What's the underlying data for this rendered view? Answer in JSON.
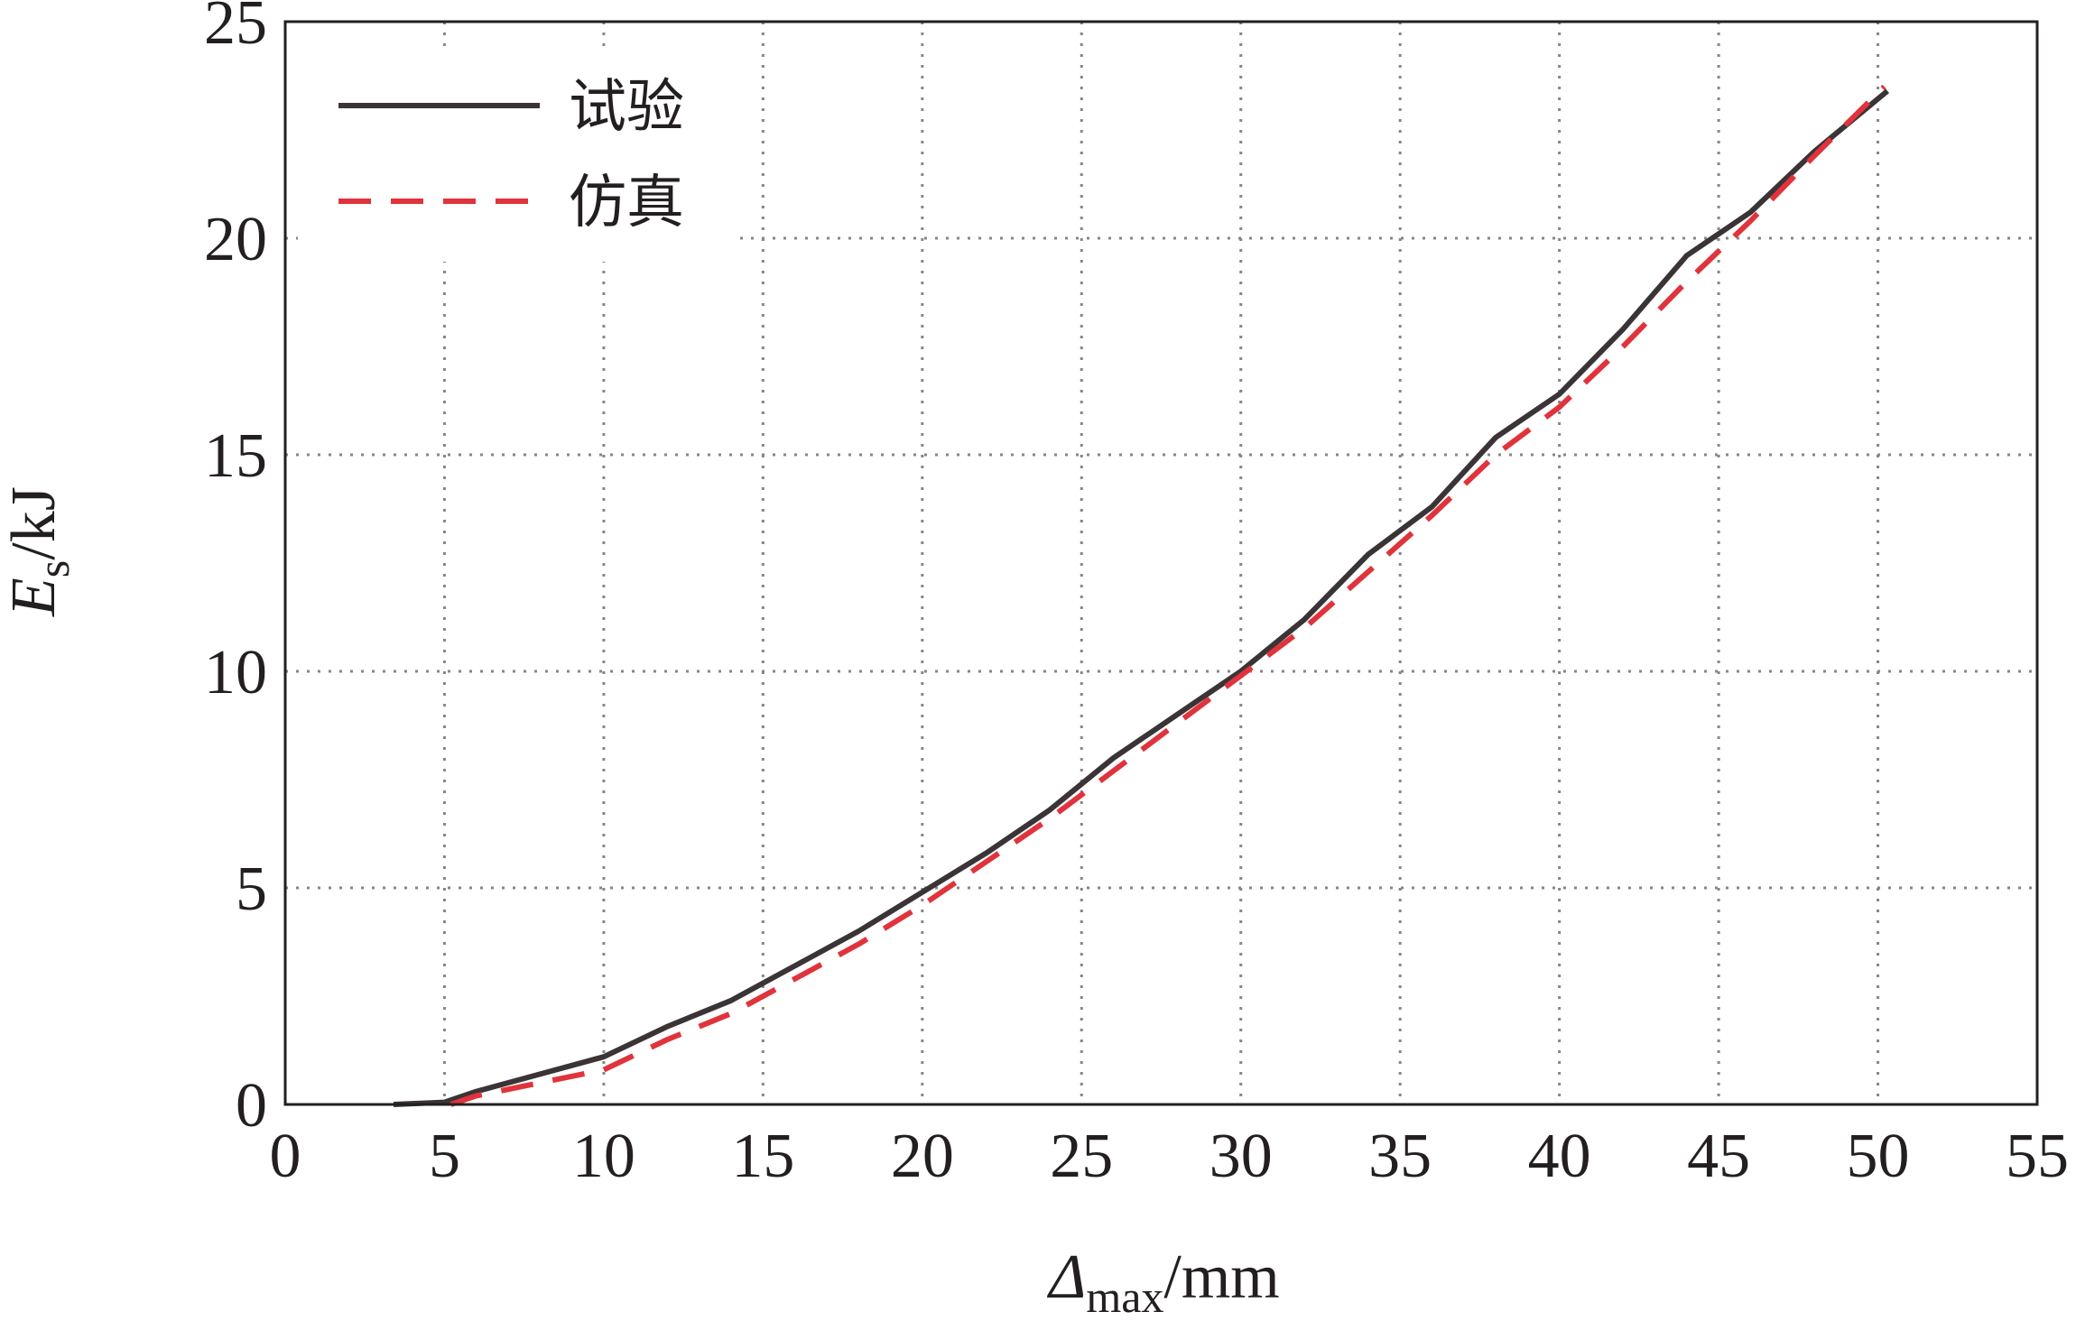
{
  "chart_data": {
    "type": "line",
    "xlabel": {
      "symbol": "Δ",
      "subscript": "max",
      "unit": "/mm"
    },
    "ylabel": {
      "symbol": "E",
      "subscript": "s",
      "unit": "/kJ"
    },
    "xlim": [
      0,
      55
    ],
    "ylim": [
      0,
      25
    ],
    "xticks": [
      0,
      5,
      10,
      15,
      20,
      25,
      30,
      35,
      40,
      45,
      50,
      55
    ],
    "yticks": [
      0,
      5,
      10,
      15,
      20,
      25
    ],
    "grid": true,
    "legend_position": "top-left",
    "series": [
      {
        "name": "试验",
        "color": "#3a3436",
        "style": "solid",
        "x": [
          3.4,
          5.0,
          6.0,
          8.0,
          10.0,
          12.0,
          14.0,
          16.0,
          18.0,
          20.0,
          22.0,
          24.0,
          26.0,
          28.0,
          30.0,
          32.0,
          34.0,
          36.0,
          38.0,
          40.0,
          42.0,
          44.0,
          46.0,
          48.0,
          50.3
        ],
        "y": [
          0.0,
          0.05,
          0.3,
          0.7,
          1.1,
          1.8,
          2.4,
          3.2,
          4.0,
          4.9,
          5.8,
          6.8,
          8.0,
          9.0,
          10.0,
          11.2,
          12.7,
          13.8,
          15.4,
          16.4,
          17.9,
          19.6,
          20.6,
          22.0,
          23.4
        ]
      },
      {
        "name": "仿真",
        "color": "#e0333c",
        "style": "dashed",
        "x": [
          5.2,
          6.0,
          8.0,
          10.0,
          12.0,
          14.0,
          16.0,
          18.0,
          20.0,
          22.0,
          24.0,
          26.0,
          28.0,
          30.0,
          32.0,
          34.0,
          36.0,
          38.0,
          40.0,
          42.0,
          44.0,
          46.0,
          48.0,
          50.2
        ],
        "y": [
          0.0,
          0.2,
          0.5,
          0.8,
          1.5,
          2.1,
          2.9,
          3.7,
          4.6,
          5.6,
          6.6,
          7.7,
          8.8,
          9.9,
          11.0,
          12.3,
          13.6,
          15.0,
          16.1,
          17.5,
          19.0,
          20.4,
          21.9,
          23.5
        ]
      }
    ]
  }
}
